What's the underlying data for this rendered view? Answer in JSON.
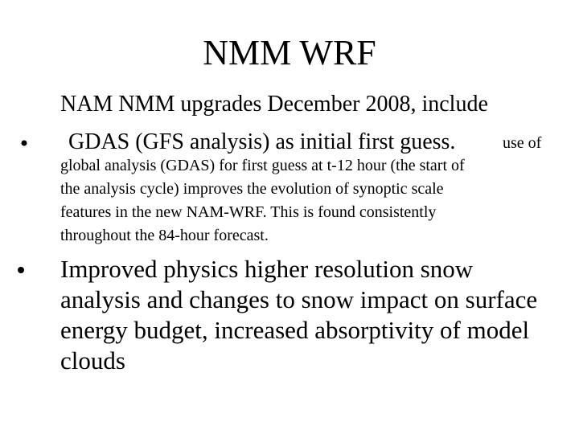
{
  "title": "NMM WRF",
  "bullets": [
    {
      "lines": [
        "NAM NMM upgrades December 2008, include",
        "GDAS (GFS analysis) as initial first guess."
      ],
      "detail": [
        "use of",
        "global analysis (GDAS) for first guess at t-12 hour (the start of",
        "the analysis cycle) improves the evolution of synoptic scale",
        "features in the new NAM-WRF. This is found consistently",
        "throughout the 84-hour forecast."
      ]
    },
    {
      "lines": [
        "Improved physics higher resolution snow",
        "analysis and changes to snow impact on surface",
        "energy budget, increased absorptivity of model",
        "clouds"
      ]
    }
  ]
}
